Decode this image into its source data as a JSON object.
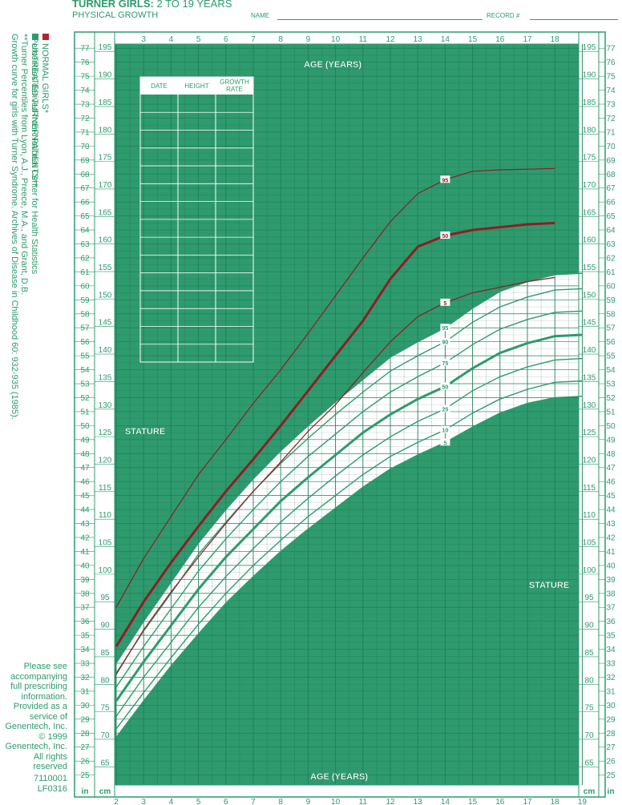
{
  "header": {
    "title_bold": "TURNER GIRLS:",
    "title_light": "2 TO 19 YEARS",
    "subtitle": "PHYSICAL GROWTH",
    "name_label": "NAME",
    "record_label": "RECORD #"
  },
  "legend": {
    "normal": {
      "label": "NORMAL GIRLS*",
      "color": "#b2242c"
    },
    "turner": {
      "label": "UNTREATED TURNER PATIENTS**",
      "color": "#2e9a6e"
    }
  },
  "side_notes": [
    "*Percentiles derived from National Center for Health Statistics",
    "**Turner Percentiles from Lyon, A.J., Preece, M.A., and Grant, D.B.",
    "Growth curve for girls with Turner Syndrome. Archives of Disease in Childhood 60: 932-935 (1985)."
  ],
  "footer_note": [
    "Please see",
    "accompanying",
    "full prescribing",
    "information.",
    "Provided as a",
    "service of",
    "Genentech, Inc.",
    "© 1999",
    "Genentech, Inc.",
    "All rights",
    "reserved"
  ],
  "codes": [
    "7110001",
    "LF0316"
  ],
  "table": {
    "headers": [
      "DATE",
      "HEIGHT",
      "GROWTH RATE"
    ],
    "row_count": 15
  },
  "labels": {
    "age_top": "AGE (YEARS)",
    "age_bottom": "AGE (YEARS)",
    "stature_left": "STATURE",
    "stature_right": "STATURE",
    "unit_in": "in",
    "unit_cm": "cm"
  },
  "colors": {
    "chart_green": "#2e9a6e",
    "grid_dark": "#1f7f5a",
    "band_white": "#ffffff",
    "normal_red": "#8f1d24"
  },
  "chart_data": {
    "type": "line",
    "xlabel": "AGE (YEARS)",
    "ylabel": "STATURE",
    "xlim": [
      2,
      19
    ],
    "ylim_in": [
      24.5,
      77.5
    ],
    "ylim_cm": [
      62.2,
      196.9
    ],
    "x_ticks": [
      "2",
      "3",
      "4",
      "5",
      "6",
      "7",
      "8",
      "9",
      "10",
      "11",
      "12",
      "13",
      "14",
      "15",
      "16",
      "17",
      "18",
      "19"
    ],
    "in_ticks": [
      25,
      26,
      27,
      28,
      29,
      30,
      31,
      32,
      33,
      34,
      35,
      36,
      37,
      38,
      39,
      40,
      41,
      42,
      43,
      44,
      45,
      46,
      47,
      48,
      49,
      50,
      51,
      52,
      53,
      54,
      55,
      56,
      57,
      58,
      59,
      60,
      61,
      62,
      63,
      64,
      65,
      66,
      67,
      68,
      69,
      70,
      71,
      72,
      73,
      74,
      75,
      76,
      77
    ],
    "cm_ticks": [
      65,
      70,
      75,
      80,
      85,
      90,
      95,
      100,
      105,
      110,
      115,
      120,
      125,
      130,
      135,
      140,
      145,
      150,
      155,
      160,
      165,
      170,
      175,
      180,
      185,
      190,
      195
    ],
    "normal_series": [
      {
        "name": "95",
        "label_at": [
          14,
          67.6
        ],
        "x": [
          2,
          3,
          4,
          5,
          6,
          7,
          8,
          9,
          10,
          11,
          12,
          13,
          14,
          15,
          16,
          17,
          18
        ],
        "y": [
          37.0,
          40.5,
          43.5,
          46.5,
          49.0,
          51.6,
          54.0,
          56.6,
          59.3,
          62.0,
          64.6,
          66.6,
          67.6,
          68.2,
          68.3,
          68.35,
          68.4
        ]
      },
      {
        "name": "50",
        "label_at": [
          14,
          63.6
        ],
        "x": [
          2,
          3,
          4,
          5,
          6,
          7,
          8,
          9,
          10,
          11,
          12,
          13,
          14,
          15,
          16,
          17,
          18
        ],
        "y": [
          34.2,
          37.4,
          40.2,
          42.8,
          45.3,
          47.6,
          50.0,
          52.5,
          55.0,
          57.5,
          60.5,
          62.8,
          63.6,
          64.0,
          64.2,
          64.4,
          64.5
        ]
      },
      {
        "name": "5",
        "label_at": [
          14,
          58.8
        ],
        "x": [
          2,
          3,
          4,
          5,
          6,
          7,
          8,
          9,
          10,
          11,
          12,
          13,
          14,
          15,
          16,
          17,
          18
        ],
        "y": [
          32.2,
          35.4,
          38.1,
          40.6,
          43.0,
          45.3,
          47.4,
          49.6,
          51.5,
          53.8,
          56.0,
          57.8,
          58.8,
          59.5,
          59.9,
          60.3,
          60.6
        ]
      }
    ],
    "turner_series": [
      {
        "name": "95",
        "label_at": [
          14,
          57.0
        ],
        "x": [
          2,
          3,
          4,
          5,
          6,
          7,
          8,
          9,
          10,
          11,
          12,
          13,
          14,
          15,
          16,
          17,
          18,
          19
        ],
        "y": [
          33.0,
          36.0,
          38.8,
          41.6,
          44.0,
          46.2,
          48.2,
          50.0,
          51.7,
          53.3,
          54.9,
          56.0,
          57.0,
          58.4,
          59.6,
          60.3,
          60.8,
          60.9
        ]
      },
      {
        "name": "90",
        "label_at": [
          14,
          56.0
        ],
        "x": [
          2,
          3,
          4,
          5,
          6,
          7,
          8,
          9,
          10,
          11,
          12,
          13,
          14,
          15,
          16,
          17,
          18,
          19
        ],
        "y": [
          32.3,
          35.3,
          38.0,
          40.8,
          43.1,
          45.3,
          47.3,
          49.1,
          50.8,
          52.4,
          53.9,
          55.0,
          56.0,
          57.4,
          58.5,
          59.2,
          59.7,
          59.8
        ]
      },
      {
        "name": "75",
        "label_at": [
          14,
          54.5
        ],
        "x": [
          2,
          3,
          4,
          5,
          6,
          7,
          8,
          9,
          10,
          11,
          12,
          13,
          14,
          15,
          16,
          17,
          18,
          19
        ],
        "y": [
          31.3,
          34.2,
          36.9,
          39.6,
          41.9,
          44.0,
          46.0,
          47.8,
          49.4,
          51.0,
          52.4,
          53.5,
          54.5,
          55.8,
          56.9,
          57.6,
          58.1,
          58.2
        ]
      },
      {
        "name": "50",
        "label_at": [
          14,
          52.8
        ],
        "x": [
          2,
          3,
          4,
          5,
          6,
          7,
          8,
          9,
          10,
          11,
          12,
          13,
          14,
          15,
          16,
          17,
          18,
          19
        ],
        "y": [
          30.3,
          33.1,
          35.7,
          38.3,
          40.6,
          42.6,
          44.6,
          46.3,
          47.9,
          49.5,
          50.8,
          51.9,
          52.8,
          54.1,
          55.2,
          55.9,
          56.4,
          56.5
        ]
      },
      {
        "name": "25",
        "label_at": [
          14,
          51.2
        ],
        "x": [
          2,
          3,
          4,
          5,
          6,
          7,
          8,
          9,
          10,
          11,
          12,
          13,
          14,
          15,
          16,
          17,
          18,
          19
        ],
        "y": [
          29.2,
          32.0,
          34.5,
          37.0,
          39.2,
          41.2,
          43.1,
          44.8,
          46.4,
          47.9,
          49.2,
          50.3,
          51.2,
          52.5,
          53.5,
          54.2,
          54.7,
          54.8
        ]
      },
      {
        "name": "10",
        "label_at": [
          14,
          49.7
        ],
        "x": [
          2,
          3,
          4,
          5,
          6,
          7,
          8,
          9,
          10,
          11,
          12,
          13,
          14,
          15,
          16,
          17,
          18,
          19
        ],
        "y": [
          28.3,
          30.9,
          33.4,
          35.8,
          38.0,
          40.0,
          41.8,
          43.5,
          45.0,
          46.5,
          47.8,
          48.8,
          49.7,
          50.9,
          51.9,
          52.6,
          53.1,
          53.2
        ]
      },
      {
        "name": "5",
        "label_at": [
          14,
          48.8
        ],
        "x": [
          2,
          3,
          4,
          5,
          6,
          7,
          8,
          9,
          10,
          11,
          12,
          13,
          14,
          15,
          16,
          17,
          18,
          19
        ],
        "y": [
          27.7,
          30.3,
          32.8,
          35.1,
          37.3,
          39.2,
          41.0,
          42.6,
          44.1,
          45.6,
          46.9,
          47.9,
          48.8,
          49.9,
          50.9,
          51.6,
          52.0,
          52.1
        ]
      }
    ]
  }
}
